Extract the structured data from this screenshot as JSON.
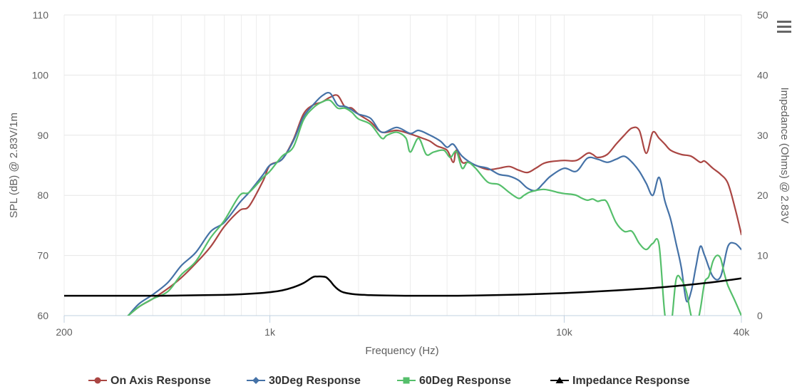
{
  "chart_data": {
    "type": "line",
    "xlabel": "Frequency (Hz)",
    "ylabel_left": "SPL (dB) @ 2.83V/1m",
    "ylabel_right": "Impedance (Ohms) @ 2.83V",
    "x_scale": "log",
    "xlim": [
      200,
      40000
    ],
    "ylim_left": [
      60,
      110
    ],
    "ylim_right": [
      0,
      50
    ],
    "x_ticks": [
      {
        "value": 200,
        "label": "200"
      },
      {
        "value": 1000,
        "label": "1k"
      },
      {
        "value": 10000,
        "label": "10k"
      },
      {
        "value": 40000,
        "label": "40k"
      }
    ],
    "y_ticks_left": [
      {
        "value": 60,
        "label": "60"
      },
      {
        "value": 70,
        "label": "70"
      },
      {
        "value": 80,
        "label": "80"
      },
      {
        "value": 90,
        "label": "90"
      },
      {
        "value": 100,
        "label": "100"
      },
      {
        "value": 110,
        "label": "110"
      }
    ],
    "y_ticks_right": [
      {
        "value": 0,
        "label": "0"
      },
      {
        "value": 10,
        "label": "10"
      },
      {
        "value": 20,
        "label": "20"
      },
      {
        "value": 30,
        "label": "30"
      },
      {
        "value": 40,
        "label": "40"
      },
      {
        "value": 50,
        "label": "50"
      }
    ],
    "grid": true,
    "legend_position": "bottom",
    "series": [
      {
        "name": "On Axis Response",
        "color": "#aa4643",
        "marker": "circle",
        "axis": "left",
        "x": [
          330,
          360,
          400,
          450,
          500,
          560,
          630,
          700,
          790,
          850,
          950,
          1000,
          1100,
          1200,
          1300,
          1400,
          1500,
          1600,
          1700,
          1800,
          1900,
          2000,
          2200,
          2400,
          2700,
          3000,
          3300,
          3500,
          3700,
          4000,
          4200,
          4300,
          4500,
          4700,
          5000,
          5500,
          6000,
          6500,
          7000,
          7500,
          8000,
          8500,
          9000,
          10000,
          11000,
          12000,
          12500,
          13000,
          14000,
          15000,
          16000,
          17000,
          18000,
          19000,
          20000,
          21000,
          22000,
          23000,
          25000,
          27000,
          29000,
          30000,
          32000,
          34000,
          36000,
          38000,
          40000
        ],
        "y": [
          60,
          61.5,
          62.8,
          64.5,
          66.3,
          68.7,
          71.5,
          74.8,
          77.5,
          78.2,
          82.5,
          85,
          86,
          89.2,
          93.5,
          95,
          95.5,
          96.3,
          96.6,
          94.7,
          94.5,
          93.5,
          92.2,
          90.5,
          90.8,
          90.2,
          89.5,
          89,
          88.2,
          87.5,
          85.5,
          87.5,
          85.5,
          85.5,
          85,
          84.3,
          84.5,
          84.8,
          84.2,
          83.8,
          84.5,
          85.3,
          85.6,
          85.8,
          85.8,
          87,
          86.8,
          86.3,
          86.8,
          88.5,
          90,
          91.2,
          90.8,
          87,
          90.5,
          89.5,
          88.5,
          87.5,
          86.8,
          86.5,
          85.5,
          85.7,
          84.5,
          83.5,
          82,
          78,
          73.5
        ]
      },
      {
        "name": "30Deg Response",
        "color": "#4572a7",
        "marker": "diamond",
        "axis": "left",
        "x": [
          330,
          360,
          400,
          450,
          500,
          560,
          630,
          700,
          790,
          850,
          950,
          1000,
          1100,
          1200,
          1300,
          1400,
          1500,
          1600,
          1700,
          1800,
          1900,
          2000,
          2200,
          2400,
          2700,
          3000,
          3200,
          3500,
          3800,
          4000,
          4200,
          4500,
          5000,
          5500,
          6000,
          6500,
          7000,
          7500,
          8000,
          8500,
          9000,
          10000,
          11000,
          12000,
          13000,
          14000,
          15000,
          16000,
          17000,
          18000,
          19000,
          20000,
          21000,
          22000,
          23000,
          24000,
          25000,
          26000,
          27000,
          28000,
          29000,
          30000,
          32000,
          34000,
          36000,
          38000,
          40000
        ],
        "y": [
          60,
          62,
          63.5,
          65.5,
          68.3,
          70.5,
          74,
          75.5,
          78.8,
          80.5,
          83.5,
          85,
          86,
          89,
          93,
          95,
          96.5,
          97,
          95,
          94.8,
          94.2,
          93.5,
          92.8,
          90.5,
          91.3,
          90.3,
          90.8,
          90,
          89,
          88,
          88.5,
          86.5,
          85,
          84.5,
          83.5,
          83.2,
          82.5,
          81.2,
          80.8,
          82,
          83.2,
          84.5,
          84,
          86.2,
          86,
          85.5,
          86,
          86.5,
          85.5,
          84,
          82,
          80,
          83,
          79,
          76,
          72,
          68,
          62.5,
          64,
          68,
          71.5,
          70,
          66.5,
          66.5,
          71.5,
          72,
          71
        ]
      },
      {
        "name": "60Deg Response",
        "color": "#55bf6b",
        "marker": "square",
        "axis": "left",
        "x": [
          330,
          360,
          400,
          450,
          500,
          560,
          630,
          700,
          790,
          850,
          950,
          1000,
          1100,
          1200,
          1300,
          1400,
          1500,
          1600,
          1700,
          1800,
          1900,
          2000,
          2200,
          2400,
          2500,
          2700,
          2900,
          3000,
          3200,
          3400,
          3600,
          3900,
          4100,
          4300,
          4500,
          4700,
          5000,
          5500,
          6000,
          6500,
          7000,
          7300,
          7600,
          8000,
          8500,
          9000,
          9500,
          10000,
          10500,
          11000,
          11500,
          12000,
          12500,
          13000,
          13500,
          14000,
          15000,
          16000,
          17000,
          18000,
          19000,
          20000,
          21000,
          22000,
          23000,
          24000,
          25000,
          26000,
          27000,
          28000,
          29000,
          30000,
          31000,
          32000,
          33000,
          34000,
          35000,
          36000,
          38000,
          40000
        ],
        "y": [
          60,
          61.5,
          62.8,
          64,
          66.8,
          69,
          73,
          75.8,
          80,
          80.5,
          83,
          84,
          86.5,
          88,
          92.5,
          94.5,
          95.5,
          95.8,
          94.5,
          94.5,
          93.8,
          92.7,
          91.8,
          89.5,
          90,
          90.5,
          89.5,
          87.2,
          89.5,
          86.8,
          87.2,
          87.5,
          86.3,
          87.3,
          84.5,
          85.5,
          84.5,
          82.2,
          81.8,
          80.5,
          79.5,
          80,
          80.5,
          80.8,
          81,
          80.8,
          80.5,
          80.3,
          80.2,
          80,
          79.5,
          79.2,
          79.4,
          79,
          79.2,
          78.8,
          75.5,
          74,
          74,
          72,
          71,
          72,
          71.8,
          60,
          58,
          66,
          66,
          64,
          60,
          58,
          61,
          65.5,
          66.5,
          69,
          70,
          69.5,
          67,
          65,
          62.5,
          60
        ]
      },
      {
        "name": "Impedance Response",
        "color": "#000000",
        "marker": "triangle",
        "axis": "right",
        "x": [
          200,
          300,
          400,
          500,
          600,
          700,
          800,
          900,
          1000,
          1100,
          1200,
          1300,
          1400,
          1450,
          1500,
          1550,
          1600,
          1650,
          1700,
          1750,
          1800,
          1900,
          2000,
          2200,
          2500,
          3000,
          4000,
          5000,
          7000,
          10000,
          15000,
          20000,
          25000,
          30000,
          35000,
          40000
        ],
        "y": [
          3.3,
          3.3,
          3.3,
          3.35,
          3.4,
          3.45,
          3.55,
          3.7,
          3.9,
          4.2,
          4.7,
          5.4,
          6.4,
          6.5,
          6.5,
          6.4,
          5.8,
          5.0,
          4.4,
          4.0,
          3.8,
          3.6,
          3.5,
          3.4,
          3.35,
          3.3,
          3.3,
          3.35,
          3.5,
          3.75,
          4.2,
          4.6,
          5.0,
          5.4,
          5.8,
          6.2
        ]
      }
    ]
  }
}
